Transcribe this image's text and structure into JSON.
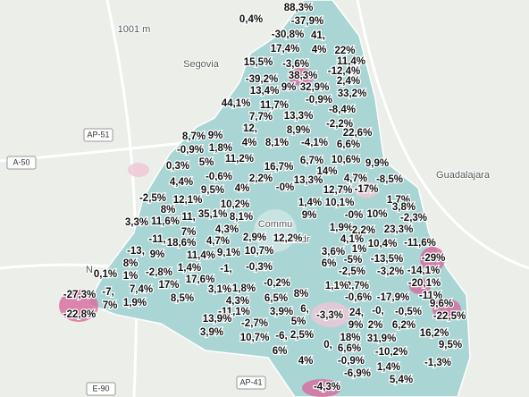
{
  "map": {
    "places": [
      "1001 m",
      "Segovia",
      "Guadalajara",
      "Commu",
      "Madr",
      "N"
    ],
    "roads": [
      "AP-51",
      "A-50",
      "E-90",
      "AP-41"
    ],
    "labels": [
      "88,3%",
      "0,4%",
      "-37,9%",
      "-30,8%",
      "41,",
      "17,4%",
      "4%",
      "22%",
      "15,5%",
      "-3,6%",
      "11,4%",
      "-12,4%",
      "-39,2%",
      "38,3%",
      "2,4%",
      "13,4%",
      "9%",
      "32,9%",
      "33,2%",
      "44,1%",
      "11,7%",
      "-0,9%",
      "-8,4%",
      "7,7%",
      "13,3%",
      "-2,2%",
      "12,",
      "8,9%",
      "22,6%",
      "8,7%",
      "9%",
      "4%",
      "8,1%",
      "-4,1%",
      "6,6%",
      "-0,9%",
      "1,8%",
      "11,2%",
      "6,7%",
      "10,6%",
      "9,9%",
      "0,3%",
      "5%",
      "16,7%",
      "14%",
      "-0,6%",
      "2,2%",
      "13,3%",
      "4,7%",
      "-8,5%",
      "4,4%",
      "9,5%",
      "4%",
      "-0%",
      "12,7%",
      "-17%",
      "-2,5%",
      "12,1%",
      "10,2%",
      "1,4%",
      "10,1%",
      "1,7%",
      "8%",
      "3,8%",
      "3,3%",
      "11,6%",
      "11,",
      "35,1%",
      "8,1%",
      "9%",
      "-0%",
      "10%",
      "-2,3%",
      "7%",
      "4,3%",
      "1,9%",
      "2,2%",
      "23,3%",
      "-11,",
      "18,6%",
      "4,7%",
      "2,9%",
      "12,2%",
      "4,1%",
      "10,4%",
      "-11,6%",
      "-13,",
      "9%",
      "11,4%",
      "9,1%",
      "10,7%",
      "3,6%",
      "1%",
      "-13,5%",
      "-29%",
      "8%",
      "1,4%",
      "6%",
      "-5%",
      "-2,8%",
      "-1,",
      "-0,3%",
      "-2,5%",
      "-3,2%",
      "-14,1%",
      "0,1%",
      "1%",
      "17,6%",
      "-2,7%",
      "-20,1%",
      "-27,3%",
      "-7,",
      "7,4%",
      "17%",
      "3,1%",
      "1,8%",
      "-0,2%",
      "1,1%",
      "8%",
      "-0,6%",
      "-17,9%",
      "-11%",
      "8,5%",
      "4,3%",
      "6,5%",
      "1,9%",
      "7%",
      "9,6%",
      "-11,1%",
      "3,9%",
      "6,",
      "-3,3%",
      "24,",
      "-0,",
      "-0,5%",
      "-22,5%",
      "-22,8%",
      "13,9%",
      "-2,7%",
      "5%",
      "9%",
      "2%",
      "6,2%",
      "16,2%",
      "3,9%",
      "10,7%",
      "-6,",
      "2,5%",
      "18%",
      "31,9%",
      "9,5%",
      "6%",
      "0,",
      "6,6%",
      "-10,2%",
      "4%",
      "-0,9%",
      "-1,3%",
      "-6,9%",
      "1,4%",
      "-4,3%",
      "5,4%"
    ]
  }
}
